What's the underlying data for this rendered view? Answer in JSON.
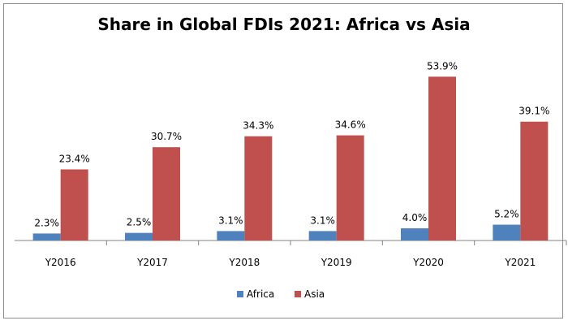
{
  "chart_data": {
    "type": "bar",
    "title": "Share in Global  FDIs 2021: Africa vs Asia",
    "categories": [
      "Y2016",
      "Y2017",
      "Y2018",
      "Y2019",
      "Y2020",
      "Y2021"
    ],
    "series": [
      {
        "name": "Africa",
        "color": "#4f81bd",
        "values": [
          2.3,
          2.5,
          3.1,
          3.1,
          4.0,
          5.2
        ],
        "labels": [
          "2.3%",
          "2.5%",
          "3.1%",
          "3.1%",
          "4.0%",
          "5.2%"
        ]
      },
      {
        "name": "Asia",
        "color": "#c0504d",
        "values": [
          23.4,
          30.7,
          34.3,
          34.6,
          53.9,
          39.1
        ],
        "labels": [
          "23.4%",
          "30.7%",
          "34.3%",
          "34.6%",
          "53.9%",
          "39.1%"
        ]
      }
    ],
    "ylim": [
      0,
      54
    ],
    "grid": false,
    "legend": "bottom"
  }
}
